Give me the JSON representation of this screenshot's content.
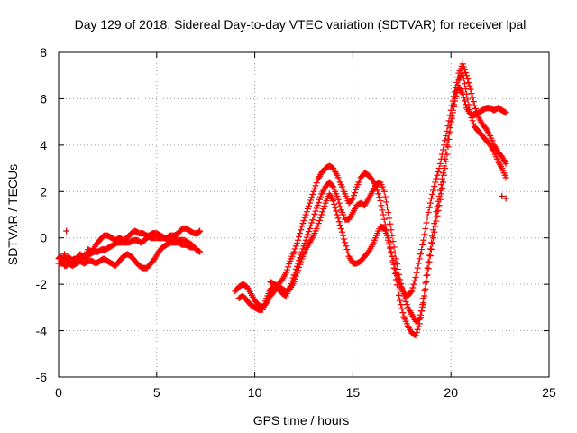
{
  "chart_data": {
    "type": "scatter",
    "title": "Day 129 of 2018, Sidereal Day-to-day VTEC variation (SDTVAR) for receiver lpal",
    "xlabel": "GPS time / hours",
    "ylabel": "SDTVAR / TECUs",
    "xlim": [
      0,
      25
    ],
    "ylim": [
      -6,
      8
    ],
    "xticks": [
      0,
      5,
      10,
      15,
      20,
      25
    ],
    "yticks": [
      -6,
      -4,
      -2,
      0,
      2,
      4,
      6,
      8
    ],
    "grid": true,
    "marker": "+",
    "color": "#ff0000",
    "series": [
      {
        "points": [
          [
            0.0,
            -0.9
          ],
          [
            0.1,
            -0.8
          ],
          [
            0.2,
            -1.0
          ],
          [
            0.3,
            -0.7
          ],
          [
            0.4,
            -1.0
          ],
          [
            0.5,
            -0.8
          ],
          [
            0.7,
            -1.0
          ],
          [
            0.9,
            -0.9
          ],
          [
            1.1,
            -0.7
          ],
          [
            1.3,
            -0.9
          ],
          [
            1.5,
            -0.5
          ],
          [
            1.7,
            -0.6
          ],
          [
            1.9,
            -0.3
          ],
          [
            2.1,
            -0.1
          ],
          [
            2.3,
            0.1
          ],
          [
            2.5,
            0.1
          ],
          [
            2.7,
            0.0
          ],
          [
            2.9,
            -0.1
          ],
          [
            3.1,
            0.0
          ],
          [
            3.3,
            -0.1
          ],
          [
            3.5,
            0.0
          ],
          [
            3.7,
            0.2
          ],
          [
            3.9,
            0.3
          ],
          [
            4.1,
            0.2
          ],
          [
            4.3,
            0.2
          ],
          [
            4.5,
            0.1
          ],
          [
            4.7,
            0.0
          ],
          [
            4.9,
            0.0
          ],
          [
            5.1,
            0.0
          ],
          [
            5.3,
            0.0
          ],
          [
            5.5,
            0.0
          ],
          [
            5.7,
            0.1
          ],
          [
            5.9,
            0.1
          ],
          [
            6.1,
            0.2
          ],
          [
            6.3,
            0.4
          ],
          [
            6.5,
            0.4
          ],
          [
            6.7,
            0.3
          ],
          [
            6.9,
            0.2
          ],
          [
            7.1,
            0.2
          ],
          [
            7.2,
            0.3
          ]
        ]
      },
      {
        "points": [
          [
            0.0,
            -1.1
          ],
          [
            0.2,
            -1.1
          ],
          [
            0.4,
            -1.2
          ],
          [
            0.6,
            -1.0
          ],
          [
            0.8,
            -0.9
          ],
          [
            1.0,
            -1.0
          ],
          [
            1.2,
            -0.8
          ],
          [
            1.4,
            -0.8
          ],
          [
            1.6,
            -0.7
          ],
          [
            1.8,
            -0.6
          ],
          [
            2.0,
            -0.6
          ],
          [
            2.2,
            -0.5
          ],
          [
            2.4,
            -0.5
          ],
          [
            2.6,
            -0.4
          ],
          [
            2.8,
            -0.3
          ],
          [
            3.0,
            -0.2
          ],
          [
            3.2,
            -0.2
          ],
          [
            3.4,
            -0.2
          ],
          [
            3.6,
            -0.2
          ],
          [
            3.8,
            -0.1
          ],
          [
            4.0,
            -0.1
          ],
          [
            4.2,
            -0.2
          ],
          [
            4.4,
            -0.1
          ],
          [
            4.6,
            0.1
          ],
          [
            4.8,
            0.2
          ],
          [
            5.0,
            0.2
          ],
          [
            5.2,
            0.1
          ],
          [
            5.4,
            0.0
          ],
          [
            5.6,
            -0.1
          ],
          [
            5.8,
            -0.1
          ],
          [
            6.0,
            -0.1
          ],
          [
            6.2,
            -0.1
          ],
          [
            6.4,
            -0.1
          ],
          [
            6.6,
            -0.2
          ],
          [
            6.8,
            -0.3
          ],
          [
            7.0,
            -0.5
          ],
          [
            7.2,
            -0.6
          ]
        ]
      },
      {
        "points": [
          [
            0.3,
            -1.2
          ],
          [
            0.5,
            -1.1
          ],
          [
            0.7,
            -1.2
          ],
          [
            0.9,
            -1.1
          ],
          [
            1.1,
            -1.0
          ],
          [
            1.3,
            -1.1
          ],
          [
            1.5,
            -1.0
          ],
          [
            1.7,
            -1.0
          ],
          [
            1.9,
            -1.1
          ],
          [
            2.1,
            -1.0
          ],
          [
            2.3,
            -0.9
          ],
          [
            2.5,
            -1.0
          ],
          [
            2.7,
            -1.1
          ],
          [
            2.9,
            -1.2
          ],
          [
            3.1,
            -1.0
          ],
          [
            3.3,
            -0.8
          ],
          [
            3.5,
            -0.7
          ],
          [
            3.7,
            -0.8
          ],
          [
            3.9,
            -1.0
          ],
          [
            4.1,
            -1.2
          ],
          [
            4.3,
            -1.3
          ],
          [
            4.5,
            -1.3
          ],
          [
            4.7,
            -1.1
          ],
          [
            4.9,
            -0.9
          ],
          [
            5.1,
            -0.6
          ],
          [
            5.3,
            -0.4
          ],
          [
            5.5,
            -0.3
          ],
          [
            5.7,
            -0.2
          ],
          [
            5.9,
            -0.2
          ],
          [
            6.1,
            -0.2
          ],
          [
            6.3,
            -0.3
          ],
          [
            6.5,
            -0.3
          ],
          [
            6.7,
            -0.4
          ],
          [
            6.9,
            -0.4
          ]
        ]
      },
      {
        "points": [
          [
            9.0,
            -2.3
          ],
          [
            9.2,
            -2.1
          ],
          [
            9.4,
            -2.0
          ],
          [
            9.6,
            -2.1
          ],
          [
            9.8,
            -2.4
          ],
          [
            10.0,
            -2.7
          ],
          [
            10.2,
            -2.9
          ],
          [
            10.4,
            -3.0
          ],
          [
            10.6,
            -2.8
          ],
          [
            10.8,
            -2.5
          ],
          [
            11.0,
            -2.3
          ],
          [
            11.2,
            -2.0
          ],
          [
            11.4,
            -1.8
          ],
          [
            11.6,
            -1.5
          ],
          [
            11.8,
            -1.0
          ],
          [
            12.0,
            -0.6
          ],
          [
            12.2,
            -0.1
          ],
          [
            12.4,
            0.5
          ],
          [
            12.6,
            1.0
          ],
          [
            12.8,
            1.5
          ],
          [
            13.0,
            2.0
          ],
          [
            13.2,
            2.5
          ],
          [
            13.4,
            2.8
          ],
          [
            13.6,
            3.0
          ],
          [
            13.8,
            3.1
          ],
          [
            14.0,
            3.0
          ],
          [
            14.2,
            2.7
          ],
          [
            14.4,
            2.3
          ],
          [
            14.6,
            1.9
          ],
          [
            14.8,
            1.5
          ],
          [
            15.0,
            1.7
          ],
          [
            15.2,
            2.2
          ],
          [
            15.4,
            2.6
          ],
          [
            15.6,
            2.8
          ],
          [
            15.8,
            2.7
          ],
          [
            16.0,
            2.5
          ],
          [
            16.2,
            2.2
          ],
          [
            16.4,
            1.6
          ],
          [
            16.6,
            0.8
          ],
          [
            16.8,
            -0.1
          ],
          [
            17.0,
            -0.8
          ],
          [
            17.2,
            -1.5
          ],
          [
            17.4,
            -2.0
          ],
          [
            17.6,
            -2.4
          ],
          [
            17.8,
            -2.5
          ],
          [
            18.0,
            -2.3
          ],
          [
            18.2,
            -1.7
          ],
          [
            18.4,
            -0.9
          ],
          [
            18.6,
            -0.1
          ],
          [
            18.8,
            0.9
          ],
          [
            19.0,
            1.7
          ],
          [
            19.2,
            2.4
          ],
          [
            19.4,
            3.0
          ],
          [
            19.6,
            3.8
          ],
          [
            19.8,
            4.6
          ],
          [
            20.0,
            5.5
          ],
          [
            20.2,
            6.3
          ],
          [
            20.4,
            7.1
          ],
          [
            20.6,
            7.5
          ],
          [
            20.8,
            7.0
          ],
          [
            21.0,
            6.4
          ],
          [
            21.2,
            5.7
          ],
          [
            21.4,
            5.2
          ],
          [
            21.6,
            4.9
          ],
          [
            21.8,
            4.7
          ],
          [
            22.0,
            4.4
          ],
          [
            22.2,
            4.0
          ],
          [
            22.4,
            3.7
          ],
          [
            22.6,
            3.5
          ],
          [
            22.8,
            3.2
          ]
        ]
      },
      {
        "points": [
          [
            9.2,
            -2.6
          ],
          [
            9.4,
            -2.5
          ],
          [
            9.6,
            -2.7
          ],
          [
            9.8,
            -2.9
          ],
          [
            10.0,
            -3.0
          ],
          [
            10.2,
            -3.1
          ],
          [
            10.4,
            -3.1
          ],
          [
            10.6,
            -2.6
          ],
          [
            10.8,
            -2.2
          ],
          [
            11.0,
            -2.1
          ],
          [
            11.2,
            -2.2
          ],
          [
            11.4,
            -2.4
          ],
          [
            11.6,
            -2.5
          ],
          [
            11.8,
            -2.1
          ],
          [
            12.0,
            -1.6
          ],
          [
            12.2,
            -1.1
          ],
          [
            12.4,
            -0.6
          ],
          [
            12.6,
            -0.1
          ],
          [
            12.8,
            0.4
          ],
          [
            13.0,
            0.9
          ],
          [
            13.2,
            1.4
          ],
          [
            13.4,
            1.9
          ],
          [
            13.6,
            2.2
          ],
          [
            13.8,
            2.4
          ],
          [
            14.0,
            2.2
          ],
          [
            14.2,
            1.8
          ],
          [
            14.4,
            1.2
          ],
          [
            14.6,
            0.8
          ],
          [
            14.8,
            0.8
          ],
          [
            15.0,
            1.1
          ],
          [
            15.2,
            1.4
          ],
          [
            15.4,
            1.5
          ],
          [
            15.6,
            1.4
          ],
          [
            15.8,
            1.7
          ],
          [
            16.0,
            2.0
          ],
          [
            16.2,
            2.3
          ],
          [
            16.4,
            2.4
          ],
          [
            16.6,
            2.0
          ],
          [
            16.8,
            1.1
          ],
          [
            17.0,
            0.1
          ],
          [
            17.2,
            -0.9
          ],
          [
            17.4,
            -1.8
          ],
          [
            17.6,
            -2.5
          ],
          [
            17.8,
            -3.0
          ],
          [
            18.0,
            -3.3
          ],
          [
            18.2,
            -3.6
          ],
          [
            18.4,
            -3.5
          ],
          [
            18.6,
            -2.8
          ],
          [
            18.8,
            -1.6
          ],
          [
            19.0,
            -0.5
          ],
          [
            19.2,
            0.5
          ],
          [
            19.4,
            1.4
          ],
          [
            19.6,
            2.4
          ],
          [
            19.8,
            3.6
          ],
          [
            20.0,
            4.9
          ],
          [
            20.2,
            5.9
          ],
          [
            20.4,
            6.8
          ],
          [
            20.6,
            7.1
          ],
          [
            20.8,
            6.2
          ],
          [
            21.0,
            5.3
          ],
          [
            21.2,
            4.8
          ],
          [
            21.4,
            4.6
          ],
          [
            21.6,
            4.4
          ],
          [
            21.8,
            4.2
          ],
          [
            22.0,
            4.0
          ],
          [
            22.2,
            3.7
          ],
          [
            22.4,
            3.3
          ],
          [
            22.6,
            3.0
          ],
          [
            22.8,
            2.6
          ]
        ]
      },
      {
        "points": [
          [
            10.8,
            -1.9
          ],
          [
            11.0,
            -2.0
          ],
          [
            11.2,
            -2.1
          ],
          [
            11.4,
            -2.2
          ],
          [
            11.6,
            -2.3
          ],
          [
            11.8,
            -2.2
          ],
          [
            12.0,
            -1.9
          ],
          [
            12.2,
            -1.4
          ],
          [
            12.4,
            -0.9
          ],
          [
            12.6,
            -0.5
          ],
          [
            12.8,
            -0.2
          ],
          [
            13.0,
            0.1
          ],
          [
            13.2,
            0.5
          ],
          [
            13.4,
            1.0
          ],
          [
            13.6,
            1.5
          ],
          [
            13.8,
            1.9
          ],
          [
            14.0,
            1.6
          ],
          [
            14.2,
            1.0
          ],
          [
            14.4,
            0.4
          ],
          [
            14.6,
            -0.2
          ],
          [
            14.8,
            -0.8
          ],
          [
            15.0,
            -1.1
          ],
          [
            15.2,
            -1.1
          ],
          [
            15.4,
            -1.0
          ],
          [
            15.6,
            -0.8
          ],
          [
            15.8,
            -0.6
          ],
          [
            16.0,
            -0.3
          ],
          [
            16.2,
            0.1
          ],
          [
            16.4,
            0.5
          ],
          [
            16.6,
            0.4
          ],
          [
            16.8,
            0.0
          ],
          [
            17.0,
            -0.8
          ],
          [
            17.2,
            -1.8
          ],
          [
            17.4,
            -2.7
          ],
          [
            17.6,
            -3.4
          ],
          [
            17.8,
            -3.8
          ],
          [
            18.0,
            -4.1
          ],
          [
            18.2,
            -4.2
          ],
          [
            18.4,
            -3.7
          ],
          [
            18.6,
            -2.6
          ],
          [
            18.8,
            -1.3
          ],
          [
            19.0,
            -0.2
          ],
          [
            19.2,
            0.9
          ],
          [
            19.4,
            1.8
          ],
          [
            19.6,
            2.8
          ],
          [
            19.8,
            4.0
          ],
          [
            20.0,
            5.0
          ],
          [
            20.2,
            6.0
          ],
          [
            20.4,
            6.5
          ],
          [
            20.6,
            6.2
          ],
          [
            20.8,
            5.6
          ],
          [
            21.0,
            5.3
          ],
          [
            21.2,
            5.3
          ],
          [
            21.4,
            5.4
          ],
          [
            21.6,
            5.5
          ],
          [
            21.8,
            5.6
          ],
          [
            22.0,
            5.6
          ],
          [
            22.2,
            5.5
          ],
          [
            22.4,
            5.6
          ],
          [
            22.6,
            5.5
          ],
          [
            22.8,
            5.4
          ]
        ]
      },
      {
        "points": [
          [
            0.4,
            0.3
          ],
          [
            22.6,
            1.8
          ],
          [
            22.8,
            1.7
          ]
        ]
      }
    ]
  }
}
